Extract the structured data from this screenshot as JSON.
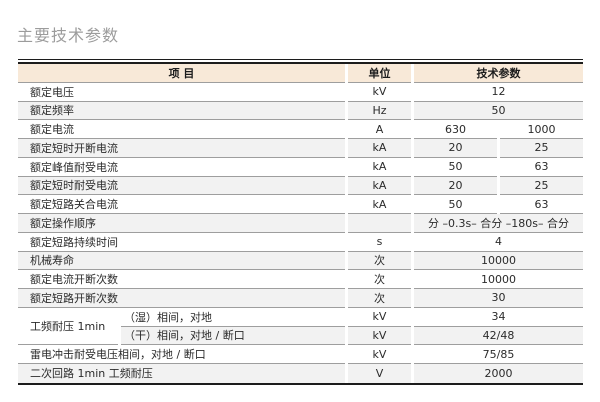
{
  "page": {
    "title": "主要技术参数",
    "colors": {
      "title_text": "#9c9c9c",
      "header_bg": "#f8e9d8",
      "stripe_bg": "#f2f2f2",
      "separator_line": "#9e9e9e",
      "frame_rule": "#1c1c1c",
      "body_text": "#2b2b2b"
    }
  },
  "table": {
    "headers": [
      "项 目",
      "单位",
      "技术参数"
    ],
    "rows": [
      {
        "label": "额定电压",
        "unit": "kV",
        "values": [
          "12"
        ],
        "span": true,
        "shade": false
      },
      {
        "label": "额定频率",
        "unit": "Hz",
        "values": [
          "50"
        ],
        "span": true,
        "shade": true
      },
      {
        "label": "额定电流",
        "unit": "A",
        "values": [
          "630",
          "1000"
        ],
        "span": false,
        "shade": false
      },
      {
        "label": "额定短时开断电流",
        "unit": "kA",
        "values": [
          "20",
          "25"
        ],
        "span": false,
        "shade": true
      },
      {
        "label": "额定峰值耐受电流",
        "unit": "kA",
        "values": [
          "50",
          "63"
        ],
        "span": false,
        "shade": false
      },
      {
        "label": "额定短时耐受电流",
        "unit": "kA",
        "values": [
          "20",
          "25"
        ],
        "span": false,
        "shade": true
      },
      {
        "label": "额定短路关合电流",
        "unit": "kA",
        "values": [
          "50",
          "63"
        ],
        "span": false,
        "shade": false
      },
      {
        "label": "额定操作顺序",
        "unit": "",
        "values": [
          "分 –0.3s– 合分 –180s– 合分"
        ],
        "span": true,
        "shade": true
      },
      {
        "label": "额定短路持续时间",
        "unit": "s",
        "values": [
          "4"
        ],
        "span": true,
        "shade": false
      },
      {
        "label": "机械寿命",
        "unit": "次",
        "values": [
          "10000"
        ],
        "span": true,
        "shade": true
      },
      {
        "label": "额定电流开断次数",
        "unit": "次",
        "values": [
          "10000"
        ],
        "span": true,
        "shade": false
      },
      {
        "label": "额定短路开断次数",
        "unit": "次",
        "values": [
          "30"
        ],
        "span": true,
        "shade": true
      },
      {
        "group": "工频耐压 1min",
        "group_rowspan": 2,
        "sublabel": "（湿）相间，对地",
        "unit": "kV",
        "values": [
          "34"
        ],
        "span": true,
        "shade": false
      },
      {
        "sublabel": "（干）相间，对地 / 断口",
        "unit": "kV",
        "values": [
          "42/48"
        ],
        "span": true,
        "shade": true
      },
      {
        "label": "雷电冲击耐受电压相间，对地 / 断口",
        "unit": "kV",
        "values": [
          "75/85"
        ],
        "span": true,
        "shade": false
      },
      {
        "label": "二次回路 1min 工频耐压",
        "unit": "V",
        "values": [
          "2000"
        ],
        "span": true,
        "shade": true
      }
    ]
  }
}
